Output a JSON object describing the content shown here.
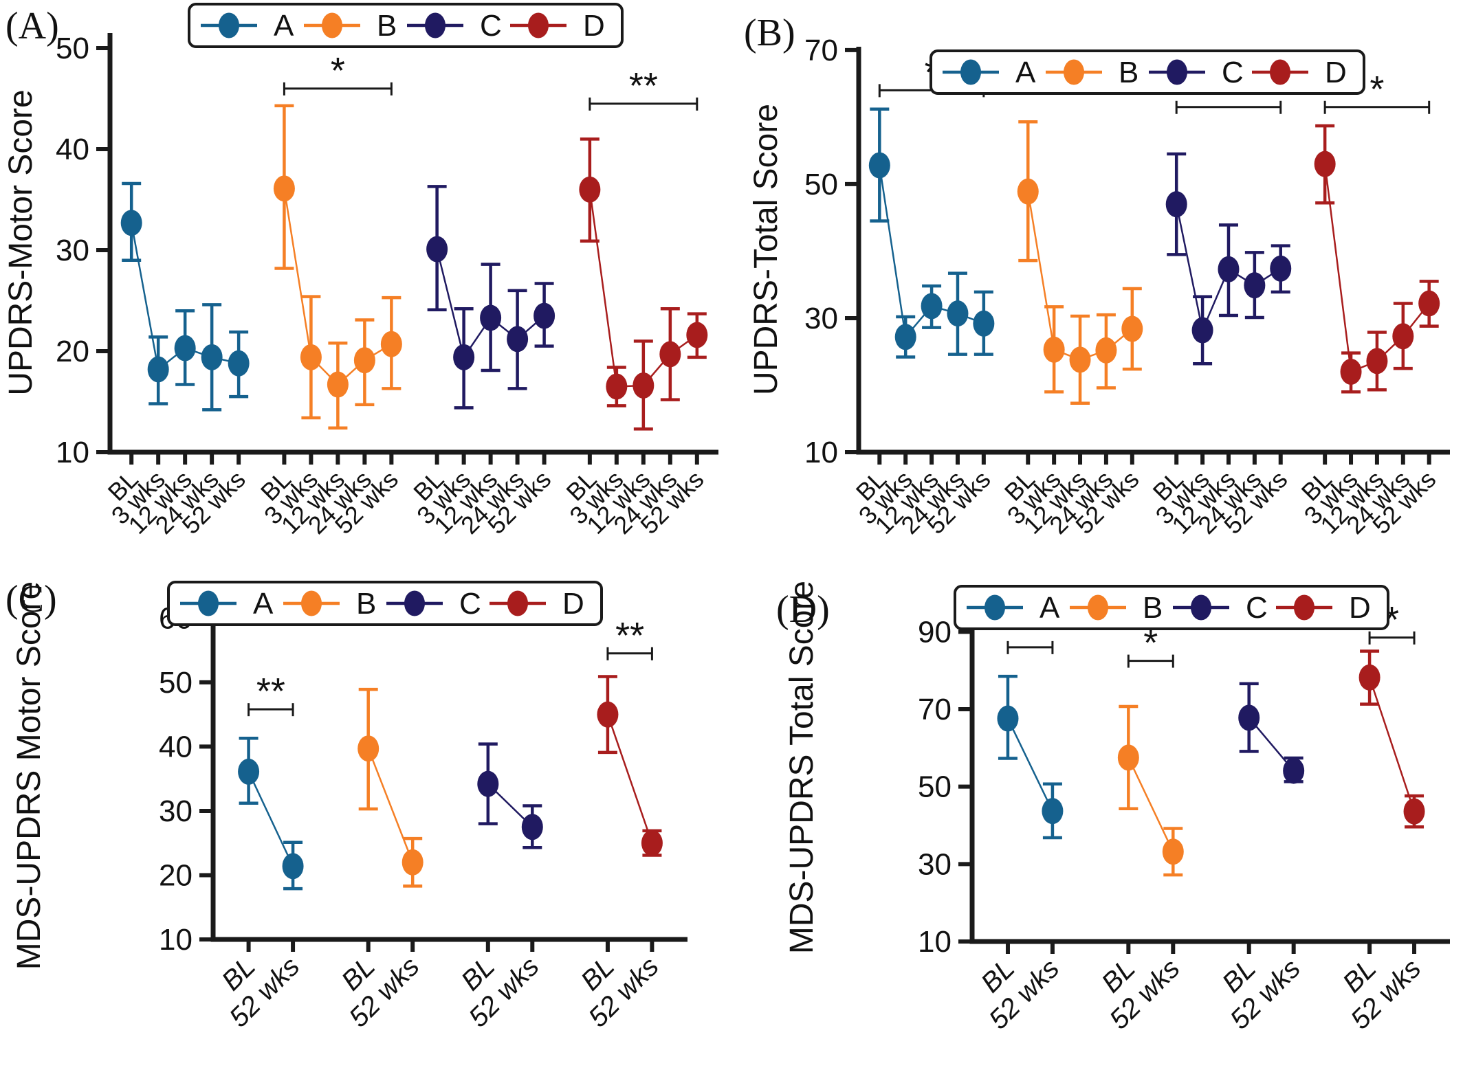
{
  "figure_bg": "#ffffff",
  "axis_color": "#1a1a1a",
  "series_colors": {
    "A": "#15618E",
    "B": "#F57F25",
    "C": "#201A61",
    "D": "#A81D1D"
  },
  "legend": {
    "items": [
      "A",
      "B",
      "C",
      "D"
    ]
  },
  "chart_data": [
    {
      "type": "line",
      "panel_letter": "(A)",
      "ylabel": "UPDRS-Motor Score",
      "ylim": [
        10,
        51.5
      ],
      "y_ticks": [
        10,
        20,
        30,
        40,
        50
      ],
      "x_tick_labels": [
        "BL",
        "3 wks",
        "12 wks",
        "24 wks",
        "52 wks"
      ],
      "grid": false,
      "legend_position": "top-center",
      "series": [
        {
          "name": "A",
          "points": [
            [
              32.7,
              29.0,
              36.6
            ],
            [
              18.2,
              14.8,
              21.4
            ],
            [
              20.3,
              16.7,
              24.0
            ],
            [
              19.4,
              14.2,
              24.6
            ],
            [
              18.8,
              15.5,
              21.9
            ]
          ]
        },
        {
          "name": "B",
          "points": [
            [
              36.1,
              28.2,
              44.3
            ],
            [
              19.4,
              13.4,
              25.4
            ],
            [
              16.7,
              12.4,
              20.8
            ],
            [
              19.1,
              14.7,
              23.1
            ],
            [
              20.7,
              16.3,
              25.3
            ]
          ]
        },
        {
          "name": "C",
          "points": [
            [
              30.1,
              24.1,
              36.3
            ],
            [
              19.4,
              14.4,
              24.2
            ],
            [
              23.3,
              18.1,
              28.6
            ],
            [
              21.2,
              16.3,
              26.0
            ],
            [
              23.5,
              20.5,
              26.7
            ]
          ]
        },
        {
          "name": "D",
          "points": [
            [
              36.0,
              30.9,
              41.0
            ],
            [
              16.5,
              14.6,
              18.4
            ],
            [
              16.6,
              12.3,
              21.0
            ],
            [
              19.7,
              15.2,
              24.2
            ],
            [
              21.6,
              19.4,
              23.7
            ]
          ]
        }
      ],
      "significance": [
        {
          "group_index": 1,
          "label": "*",
          "y_value": 46.0
        },
        {
          "group_index": 3,
          "label": "**",
          "y_value": 44.5
        }
      ],
      "x_labels_italic": false
    },
    {
      "type": "line",
      "panel_letter": "(B)",
      "ylabel": "UPDRS-Total Score",
      "ylim": [
        10,
        70.5
      ],
      "y_ticks": [
        10,
        30,
        50,
        70
      ],
      "x_tick_labels": [
        "BL",
        "3 wks",
        "12 wks",
        "24 wks",
        "52 wks"
      ],
      "grid": false,
      "legend_position": "top-center",
      "series": [
        {
          "name": "A",
          "points": [
            [
              52.8,
              44.5,
              61.2
            ],
            [
              27.2,
              24.2,
              30.2
            ],
            [
              31.8,
              28.6,
              34.8
            ],
            [
              30.7,
              24.6,
              36.7
            ],
            [
              29.2,
              24.6,
              33.9
            ]
          ]
        },
        {
          "name": "B",
          "points": [
            [
              48.9,
              38.6,
              59.3
            ],
            [
              25.3,
              19.0,
              31.7
            ],
            [
              23.8,
              17.3,
              30.3
            ],
            [
              25.2,
              19.6,
              30.5
            ],
            [
              28.4,
              22.4,
              34.4
            ]
          ]
        },
        {
          "name": "C",
          "points": [
            [
              47.0,
              39.5,
              54.5
            ],
            [
              28.2,
              23.2,
              33.2
            ],
            [
              37.3,
              30.4,
              43.9
            ],
            [
              34.9,
              30.1,
              39.8
            ],
            [
              37.4,
              33.9,
              40.8
            ]
          ]
        },
        {
          "name": "D",
          "points": [
            [
              53.0,
              47.2,
              58.7
            ],
            [
              22.0,
              19.0,
              24.8
            ],
            [
              23.6,
              19.3,
              27.9
            ],
            [
              27.3,
              22.5,
              32.2
            ],
            [
              32.2,
              28.8,
              35.5
            ]
          ]
        }
      ],
      "significance": [
        {
          "group_index": 0,
          "label": "*",
          "y_value": 64.0
        },
        {
          "group_index": 2,
          "label": "*",
          "y_value": 61.5
        },
        {
          "group_index": 3,
          "label": "*",
          "y_value": 61.5
        }
      ],
      "x_labels_italic": false
    },
    {
      "type": "line",
      "panel_letter": "(C)",
      "ylabel": "MDS-UPDRS Motor Score",
      "ylim": [
        10,
        61
      ],
      "y_ticks": [
        10,
        20,
        30,
        40,
        50,
        60
      ],
      "x_tick_labels": [
        "BL",
        "52 wks"
      ],
      "grid": false,
      "legend_position": "top-center",
      "series": [
        {
          "name": "A",
          "points": [
            [
              36.1,
              31.2,
              41.3
            ],
            [
              21.4,
              17.9,
              25.1
            ]
          ]
        },
        {
          "name": "B",
          "points": [
            [
              39.7,
              30.3,
              48.9
            ],
            [
              22.0,
              18.3,
              25.7
            ]
          ]
        },
        {
          "name": "C",
          "points": [
            [
              34.2,
              28.0,
              40.4
            ],
            [
              27.5,
              24.3,
              30.8
            ]
          ]
        },
        {
          "name": "D",
          "points": [
            [
              45.0,
              39.1,
              50.9
            ],
            [
              25.0,
              23.1,
              26.9
            ]
          ]
        }
      ],
      "significance": [
        {
          "group_index": 0,
          "label": "**",
          "y_value": 45.8
        },
        {
          "group_index": 3,
          "label": "**",
          "y_value": 54.5
        }
      ],
      "x_labels_italic": true
    },
    {
      "type": "line",
      "panel_letter": "(D)",
      "ylabel": "MDS-UPDRS Total Score",
      "ylim": [
        10,
        100
      ],
      "y_ticks": [
        10,
        30,
        50,
        70,
        90
      ],
      "x_tick_labels": [
        "BL",
        "52 wks"
      ],
      "grid": false,
      "legend_position": "top-center",
      "series": [
        {
          "name": "A",
          "points": [
            [
              67.6,
              57.3,
              78.5
            ],
            [
              43.7,
              36.8,
              50.7
            ]
          ]
        },
        {
          "name": "B",
          "points": [
            [
              57.5,
              44.3,
              70.7
            ],
            [
              33.2,
              27.2,
              39.2
            ]
          ]
        },
        {
          "name": "C",
          "points": [
            [
              67.8,
              59.1,
              76.6
            ],
            [
              54.1,
              51.3,
              57.4
            ]
          ]
        },
        {
          "name": "D",
          "points": [
            [
              78.2,
              71.3,
              85.0
            ],
            [
              43.6,
              39.6,
              47.6
            ]
          ]
        }
      ],
      "significance": [
        {
          "group_index": 0,
          "label": "**",
          "y_value": 86.0
        },
        {
          "group_index": 1,
          "label": "*",
          "y_value": 82.5
        },
        {
          "group_index": 3,
          "label": "*",
          "y_value": 88.5
        }
      ],
      "x_labels_italic": true
    }
  ]
}
